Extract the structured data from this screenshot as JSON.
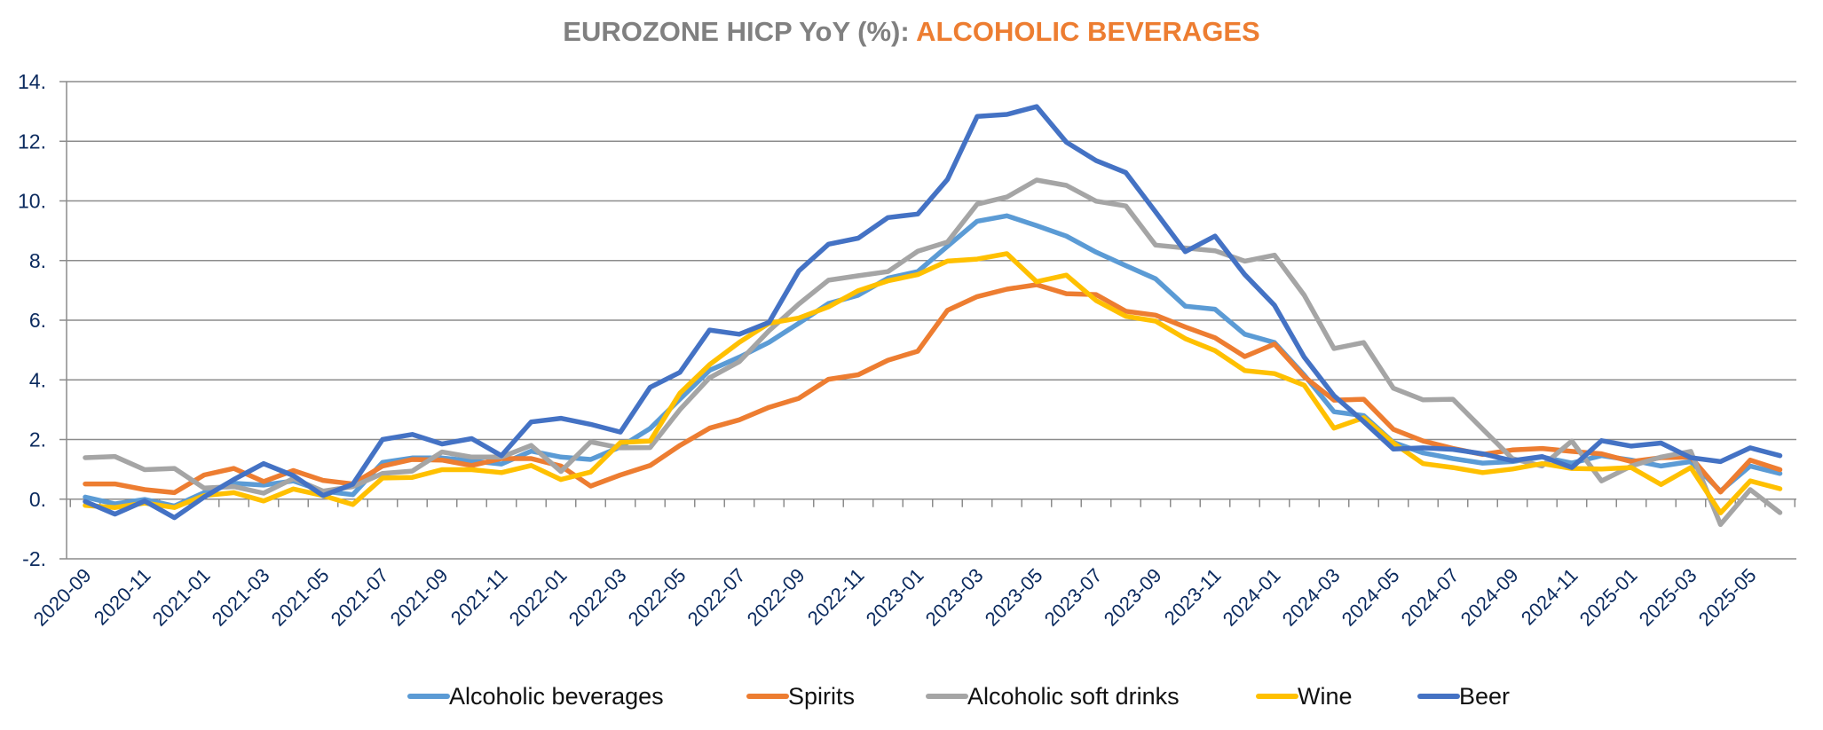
{
  "chart_data": {
    "type": "line",
    "title": "EUROZONE HICP YoY (%): ALCOHOLIC BEVERAGES",
    "title_parts": [
      "EUROZONE HICP YoY (%): ",
      "ALCOHOLIC BEVERAGES"
    ],
    "title_colors": [
      "#808080",
      "#ED7D31"
    ],
    "xlabel": "",
    "ylabel": "",
    "ylim": [
      -2,
      14
    ],
    "yticks": [
      -2,
      0,
      2,
      4,
      6,
      8,
      10,
      12,
      14
    ],
    "ytick_labels": [
      "-2.",
      "0.",
      "2.",
      "4.",
      "6.",
      "8.",
      "10.",
      "12.",
      "14."
    ],
    "grid": "horizontal",
    "legend_position": "bottom",
    "x": [
      "2020-09",
      "2020-10",
      "2020-11",
      "2020-12",
      "2021-01",
      "2021-02",
      "2021-03",
      "2021-04",
      "2021-05",
      "2021-06",
      "2021-07",
      "2021-08",
      "2021-09",
      "2021-10",
      "2021-11",
      "2021-12",
      "2022-01",
      "2022-02",
      "2022-03",
      "2022-04",
      "2022-05",
      "2022-06",
      "2022-07",
      "2022-08",
      "2022-09",
      "2022-10",
      "2022-11",
      "2022-12",
      "2023-01",
      "2023-02",
      "2023-03",
      "2023-04",
      "2023-05",
      "2023-06",
      "2023-07",
      "2023-08",
      "2023-09",
      "2023-10",
      "2023-11",
      "2023-12",
      "2024-01",
      "2024-02",
      "2024-03",
      "2024-04",
      "2024-05",
      "2024-06",
      "2024-07",
      "2024-08",
      "2024-09",
      "2024-10",
      "2024-11",
      "2024-12",
      "2025-01",
      "2025-02",
      "2025-03",
      "2025-04",
      "2025-05",
      "2025-06"
    ],
    "xtick_labels": [
      "2020-09",
      "2020-11",
      "2021-01",
      "2021-03",
      "2021-05",
      "2021-07",
      "2021-09",
      "2021-11",
      "2022-01",
      "2022-03",
      "2022-05",
      "2022-07",
      "2022-09",
      "2022-11",
      "2023-01",
      "2023-03",
      "2023-05",
      "2023-07",
      "2023-09",
      "2023-11",
      "2024-01",
      "2024-03",
      "2024-05",
      "2024-07",
      "2024-09",
      "2024-11",
      "2025-01",
      "2025-03",
      "2025-05"
    ],
    "series": [
      {
        "name": "Alcoholic beverages",
        "color": "#5B9BD5",
        "values": [
          0.07,
          -0.16,
          -0.01,
          -0.23,
          0.22,
          0.53,
          0.47,
          0.61,
          0.27,
          0.15,
          1.23,
          1.38,
          1.38,
          1.28,
          1.18,
          1.61,
          1.41,
          1.33,
          1.75,
          2.37,
          3.35,
          4.32,
          4.76,
          5.26,
          5.9,
          6.56,
          6.84,
          7.41,
          7.63,
          8.48,
          9.32,
          9.5,
          9.17,
          8.82,
          8.28,
          7.83,
          7.39,
          6.47,
          6.37,
          5.53,
          5.25,
          4.16,
          2.93,
          2.8,
          1.9,
          1.55,
          1.36,
          1.21,
          1.26,
          1.41,
          1.21,
          1.46,
          1.31,
          1.11,
          1.26,
          0.27,
          1.11,
          0.86
        ]
      },
      {
        "name": "Spirits",
        "color": "#ED7D31",
        "values": [
          0.51,
          0.51,
          0.32,
          0.22,
          0.81,
          1.03,
          0.59,
          0.96,
          0.63,
          0.51,
          1.11,
          1.33,
          1.31,
          1.13,
          1.36,
          1.36,
          1.11,
          0.44,
          0.81,
          1.13,
          1.8,
          2.38,
          2.66,
          3.08,
          3.38,
          4.02,
          4.17,
          4.66,
          4.96,
          6.33,
          6.79,
          7.04,
          7.19,
          6.89,
          6.86,
          6.3,
          6.17,
          5.77,
          5.41,
          4.78,
          5.2,
          4.11,
          3.32,
          3.35,
          2.34,
          1.95,
          1.7,
          1.5,
          1.65,
          1.7,
          1.6,
          1.52,
          1.26,
          1.39,
          1.41,
          0.24,
          1.31,
          0.99
        ]
      },
      {
        "name": "Alcoholic soft drinks",
        "color": "#A5A5A5",
        "values": [
          1.39,
          1.43,
          0.99,
          1.03,
          0.37,
          0.42,
          0.2,
          0.69,
          0.27,
          0.42,
          0.86,
          0.94,
          1.58,
          1.41,
          1.41,
          1.8,
          0.93,
          1.92,
          1.72,
          1.73,
          3.0,
          4.07,
          4.61,
          5.65,
          6.54,
          7.34,
          7.49,
          7.63,
          8.31,
          8.62,
          9.89,
          10.13,
          10.7,
          10.52,
          9.99,
          9.83,
          8.52,
          8.42,
          8.33,
          7.98,
          8.18,
          6.84,
          5.05,
          5.25,
          3.72,
          3.33,
          3.35,
          2.35,
          1.36,
          1.11,
          1.95,
          0.61,
          1.11,
          1.41,
          1.6,
          -0.85,
          0.32,
          -0.45
        ]
      },
      {
        "name": "Wine",
        "color": "#FFC000",
        "values": [
          -0.21,
          -0.28,
          -0.13,
          -0.28,
          0.12,
          0.22,
          -0.06,
          0.34,
          0.12,
          -0.18,
          0.71,
          0.73,
          0.99,
          0.99,
          0.89,
          1.13,
          0.66,
          0.91,
          1.9,
          1.95,
          3.55,
          4.51,
          5.26,
          5.9,
          6.07,
          6.45,
          6.99,
          7.32,
          7.53,
          7.98,
          8.05,
          8.23,
          7.29,
          7.51,
          6.66,
          6.13,
          5.97,
          5.38,
          4.98,
          4.31,
          4.21,
          3.82,
          2.38,
          2.73,
          1.88,
          1.19,
          1.06,
          0.89,
          1.01,
          1.19,
          1.03,
          1.01,
          1.06,
          0.49,
          1.06,
          -0.46,
          0.61,
          0.35
        ]
      },
      {
        "name": "Beer",
        "color": "#4472C4",
        "values": [
          -0.08,
          -0.5,
          -0.06,
          -0.62,
          0.07,
          0.66,
          1.19,
          0.79,
          0.12,
          0.5,
          2.0,
          2.17,
          1.85,
          2.03,
          1.46,
          2.59,
          2.71,
          2.51,
          2.25,
          3.75,
          4.25,
          5.67,
          5.53,
          5.93,
          7.65,
          8.55,
          8.75,
          9.44,
          9.56,
          10.72,
          12.83,
          12.9,
          13.16,
          11.97,
          11.35,
          10.95,
          9.63,
          8.3,
          8.82,
          7.53,
          6.5,
          4.76,
          3.47,
          2.6,
          1.68,
          1.72,
          1.67,
          1.52,
          1.29,
          1.43,
          1.06,
          1.96,
          1.78,
          1.88,
          1.39,
          1.26,
          1.72,
          1.46
        ]
      }
    ]
  }
}
